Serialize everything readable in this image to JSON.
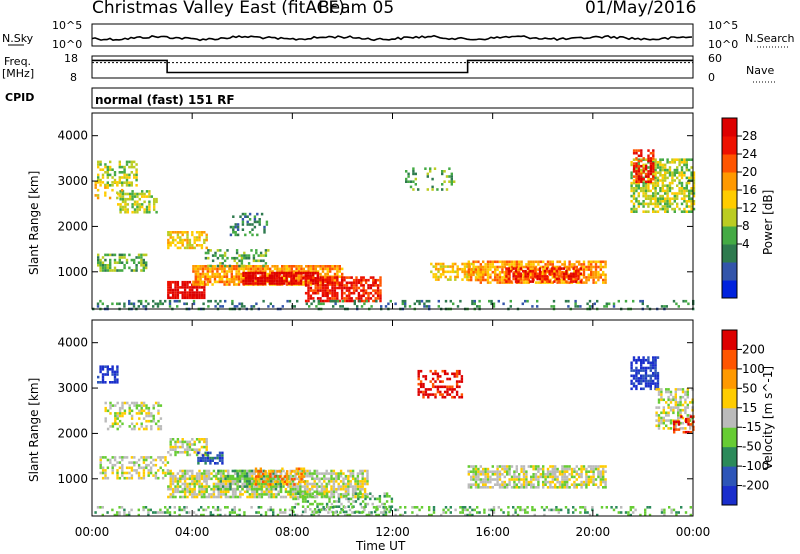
{
  "header": {
    "title": "Christmas Valley East (fitACF)",
    "beam": "Beam 05",
    "date": "01/May/2016"
  },
  "noise_panel": {
    "left_label": "N.Sky",
    "left_top": "10^5",
    "left_bottom": "10^0",
    "right_top": "10^5",
    "right_bottom": "10^0",
    "right_label": "N.Search"
  },
  "freq_panel": {
    "left_label_1": "Freq.",
    "left_label_2": "[MHz]",
    "left_top": "18",
    "left_bottom": "8",
    "right_top": "60",
    "right_bottom": "0",
    "right_label": "Nave",
    "freq_steps": [
      {
        "x": [
          0,
          3.0
        ],
        "value": 16.0
      },
      {
        "x": [
          3.0,
          15.0
        ],
        "value": 10.5
      },
      {
        "x": [
          15.0,
          24.0
        ],
        "value": 16.0
      }
    ],
    "nave_level": 42
  },
  "cpid": {
    "label": "CPID",
    "value": "normal (fast) 151 RF"
  },
  "x_axis": {
    "label": "Time UT",
    "ticks": [
      "00:00",
      "04:00",
      "08:00",
      "12:00",
      "16:00",
      "20:00",
      "00:00"
    ],
    "tick_hours": [
      0,
      4,
      8,
      12,
      16,
      20,
      24
    ]
  },
  "power_panel": {
    "ylabel": "Slant Range [km]",
    "yticks": [
      "1000",
      "2000",
      "3000",
      "4000"
    ],
    "ytick_values": [
      1000,
      2000,
      3000,
      4000
    ],
    "colorbar_label": "Power [dB]",
    "colorbar_ticks": [
      "28",
      "24",
      "20",
      "16",
      "12",
      "8",
      "4"
    ],
    "colors": [
      "#0022dd",
      "#3355aa",
      "#2e7a4e",
      "#44aa44",
      "#bbcc22",
      "#ffcc00",
      "#ff9900",
      "#ff5500",
      "#ee1100",
      "#dd0000"
    ]
  },
  "velocity_panel": {
    "ylabel": "Slant Range [km]",
    "yticks": [
      "1000",
      "2000",
      "3000",
      "4000"
    ],
    "ytick_values": [
      1000,
      2000,
      3000,
      4000
    ],
    "colorbar_label": "Velocity [m s^-1]",
    "colorbar_ticks": [
      "200",
      "100",
      "50",
      "15",
      "-15",
      "-50",
      "-100",
      "-200"
    ],
    "colors": [
      "#1a2ecc",
      "#2d55b8",
      "#2b8a5a",
      "#66cc33",
      "#bbbbbb",
      "#ffcc00",
      "#ff9900",
      "#ff5500",
      "#dd0000"
    ]
  },
  "chart_data": {
    "type": "heatmap",
    "x_range_hours": [
      0,
      24
    ],
    "y_range_km": [
      180,
      4500
    ],
    "power_regions": [
      {
        "t": [
          0.2,
          1.8
        ],
        "r": [
          2900,
          3450
        ],
        "level": 4,
        "density": 0.5
      },
      {
        "t": [
          0.2,
          2.2
        ],
        "r": [
          1000,
          1400
        ],
        "level": 3,
        "density": 0.55
      },
      {
        "t": [
          1.0,
          2.6
        ],
        "r": [
          2300,
          2800
        ],
        "level": 4,
        "density": 0.55
      },
      {
        "t": [
          0.1,
          1.2
        ],
        "r": [
          2600,
          3000
        ],
        "level": 5,
        "density": 0.4
      },
      {
        "t": [
          3.0,
          4.6
        ],
        "r": [
          1500,
          1900
        ],
        "level": 5,
        "density": 0.6
      },
      {
        "t": [
          3.0,
          4.5
        ],
        "r": [
          450,
          800
        ],
        "level": 9,
        "density": 0.85
      },
      {
        "t": [
          4.0,
          10.0
        ],
        "r": [
          700,
          1150
        ],
        "level": 6,
        "density": 0.8
      },
      {
        "t": [
          6.0,
          9.0
        ],
        "r": [
          750,
          1000
        ],
        "level": 9,
        "density": 0.85
      },
      {
        "t": [
          8.5,
          11.5
        ],
        "r": [
          350,
          900
        ],
        "level": 8,
        "density": 0.7
      },
      {
        "t": [
          4.5,
          7.0
        ],
        "r": [
          1100,
          1500
        ],
        "level": 3,
        "density": 0.4
      },
      {
        "t": [
          5.5,
          7.0
        ],
        "r": [
          1800,
          2300
        ],
        "level": 2,
        "density": 0.35
      },
      {
        "t": [
          13.5,
          15.5
        ],
        "r": [
          800,
          1200
        ],
        "level": 5,
        "density": 0.5
      },
      {
        "t": [
          15.0,
          20.5
        ],
        "r": [
          750,
          1250
        ],
        "level": 6,
        "density": 0.75
      },
      {
        "t": [
          16.5,
          19.5
        ],
        "r": [
          800,
          1100
        ],
        "level": 8,
        "density": 0.6
      },
      {
        "t": [
          21.5,
          24.0
        ],
        "r": [
          2300,
          3500
        ],
        "level": 4,
        "density": 0.65
      },
      {
        "t": [
          21.6,
          22.4
        ],
        "r": [
          3000,
          3700
        ],
        "level": 8,
        "density": 0.6
      },
      {
        "t": [
          12.5,
          14.5
        ],
        "r": [
          2800,
          3300
        ],
        "level": 3,
        "density": 0.25
      },
      {
        "t": [
          0.0,
          24.0
        ],
        "r": [
          200,
          380
        ],
        "level": 2,
        "density": 0.25
      }
    ],
    "velocity_regions": [
      {
        "t": [
          0.2,
          1.0
        ],
        "r": [
          3100,
          3500
        ],
        "v": 0,
        "density": 0.6
      },
      {
        "t": [
          0.3,
          3.0
        ],
        "r": [
          1000,
          1500
        ],
        "v": 4,
        "density": 0.5
      },
      {
        "t": [
          0.5,
          2.8
        ],
        "r": [
          2100,
          2700
        ],
        "v": 4,
        "density": 0.4
      },
      {
        "t": [
          3.0,
          4.6
        ],
        "r": [
          1500,
          1900
        ],
        "v": 4,
        "density": 0.55
      },
      {
        "t": [
          4.2,
          5.2
        ],
        "r": [
          1350,
          1600
        ],
        "v": 1,
        "density": 0.7
      },
      {
        "t": [
          3.0,
          11.0
        ],
        "r": [
          600,
          1200
        ],
        "v": 4,
        "density": 0.75
      },
      {
        "t": [
          5.0,
          7.5
        ],
        "r": [
          750,
          1200
        ],
        "v": 3,
        "density": 0.6
      },
      {
        "t": [
          6.5,
          8.5
        ],
        "r": [
          900,
          1250
        ],
        "v": 6,
        "density": 0.4
      },
      {
        "t": [
          8.0,
          12.0
        ],
        "r": [
          250,
          700
        ],
        "v": 3,
        "density": 0.35
      },
      {
        "t": [
          13.0,
          14.8
        ],
        "r": [
          2800,
          3400
        ],
        "v": 8,
        "density": 0.5
      },
      {
        "t": [
          15.0,
          20.5
        ],
        "r": [
          800,
          1300
        ],
        "v": 4,
        "density": 0.7
      },
      {
        "t": [
          21.5,
          22.6
        ],
        "r": [
          3000,
          3700
        ],
        "v": 0,
        "density": 0.7
      },
      {
        "t": [
          22.5,
          24.0
        ],
        "r": [
          2100,
          3000
        ],
        "v": 4,
        "density": 0.55
      },
      {
        "t": [
          23.2,
          24.0
        ],
        "r": [
          2000,
          2400
        ],
        "v": 8,
        "density": 0.45
      },
      {
        "t": [
          0.0,
          24.0
        ],
        "r": [
          200,
          400
        ],
        "v": 3,
        "density": 0.3
      }
    ]
  }
}
